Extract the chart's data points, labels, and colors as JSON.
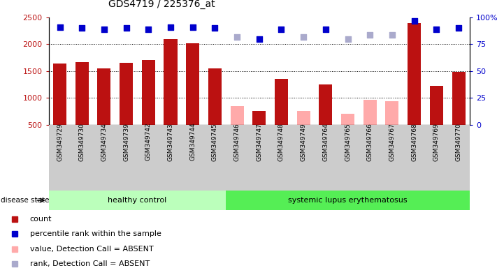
{
  "title": "GDS4719 / 225376_at",
  "samples": [
    "GSM349729",
    "GSM349730",
    "GSM349734",
    "GSM349739",
    "GSM349742",
    "GSM349743",
    "GSM349744",
    "GSM349745",
    "GSM349746",
    "GSM349747",
    "GSM349748",
    "GSM349749",
    "GSM349764",
    "GSM349765",
    "GSM349766",
    "GSM349767",
    "GSM349768",
    "GSM349769",
    "GSM349770"
  ],
  "count_values": [
    1640,
    1660,
    1555,
    1650,
    1700,
    2090,
    2020,
    1555,
    null,
    750,
    1350,
    null,
    1250,
    null,
    null,
    null,
    2400,
    1220,
    1490
  ],
  "count_absent": [
    null,
    null,
    null,
    null,
    null,
    null,
    null,
    null,
    840,
    null,
    null,
    760,
    null,
    700,
    960,
    940,
    null,
    null,
    null
  ],
  "percentile_present": [
    91,
    90,
    89,
    90,
    89,
    91,
    91,
    90,
    null,
    80,
    89,
    null,
    89,
    null,
    null,
    null,
    97,
    89,
    90
  ],
  "percentile_absent": [
    null,
    null,
    null,
    null,
    null,
    null,
    null,
    null,
    82,
    null,
    null,
    82,
    null,
    80,
    84,
    84,
    null,
    null,
    null
  ],
  "healthy_control_count": 8,
  "group_labels": [
    "healthy control",
    "systemic lupus erythematosus"
  ],
  "ylim_left": [
    500,
    2500
  ],
  "ylim_right": [
    0,
    100
  ],
  "right_ticks": [
    0,
    25,
    50,
    75,
    100
  ],
  "right_tick_labels": [
    "0",
    "25",
    "50",
    "75",
    "100%"
  ],
  "left_ticks": [
    500,
    1000,
    1500,
    2000,
    2500
  ],
  "bar_color_present": "#bb1111",
  "bar_color_absent": "#ffaaaa",
  "dot_color_present": "#0000cc",
  "dot_color_absent": "#aaaacc",
  "bg_color": "#ffffff",
  "xtick_bg_color": "#cccccc",
  "group1_color": "#bbffbb",
  "group2_color": "#55ee55",
  "disease_label": "disease state",
  "legend": [
    {
      "label": "count",
      "color": "#bb1111"
    },
    {
      "label": "percentile rank within the sample",
      "color": "#0000cc"
    },
    {
      "label": "value, Detection Call = ABSENT",
      "color": "#ffaaaa"
    },
    {
      "label": "rank, Detection Call = ABSENT",
      "color": "#aaaacc"
    }
  ]
}
